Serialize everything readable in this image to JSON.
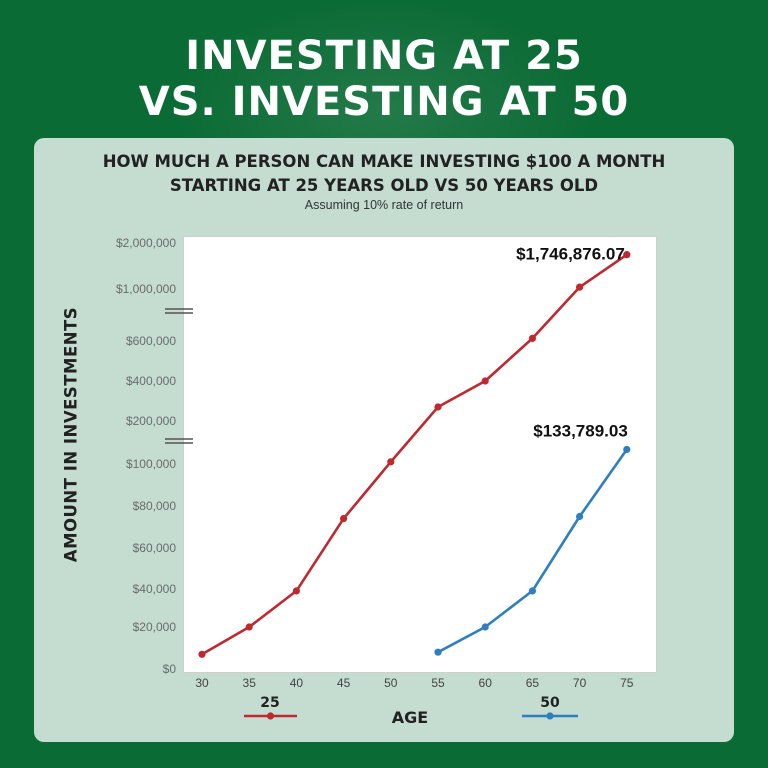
{
  "header": {
    "title_line1": "INVESTING AT 25",
    "title_line2": "VS. INVESTING AT 50"
  },
  "colors": {
    "background": "#0b6b35",
    "panel": "#c4ddd0",
    "series_25": "#c0282f",
    "series_50": "#2f7ec0"
  },
  "chart_data": {
    "type": "line",
    "title": "HOW MUCH A PERSON CAN MAKE INVESTING $100 A MONTH",
    "subtitle": "STARTING AT 25 YEARS OLD VS 50 YEARS OLD",
    "note": "Assuming 10% rate of return",
    "xlabel": "AGE",
    "ylabel": "AMOUNT IN INVESTMENTS",
    "y_axis_broken": true,
    "grid": false,
    "legend_position": "bottom",
    "x": [
      30,
      35,
      40,
      45,
      50,
      55,
      60,
      65,
      70,
      75
    ],
    "x_tick_labels": [
      "30",
      "35",
      "40",
      "45",
      "50",
      "55",
      "60",
      "65",
      "70",
      "75"
    ],
    "y_tick_values": [
      0,
      20000,
      40000,
      60000,
      80000,
      100000,
      200000,
      400000,
      600000,
      1000000,
      2000000
    ],
    "y_tick_labels": [
      "$0",
      "$20,000",
      "$40,000",
      "$60,000",
      "$80,000",
      "$100,000",
      "$200,000",
      "$400,000",
      "$600,000",
      "$1,000,000",
      "$2,000,000"
    ],
    "series": [
      {
        "name": "25",
        "color": "#c0282f",
        "x": [
          30,
          35,
          40,
          45,
          50,
          55,
          60,
          65,
          70,
          75
        ],
        "values": [
          7000,
          20000,
          39000,
          74000,
          105000,
          270000,
          400000,
          620000,
          1040000,
          1746876.07
        ],
        "end_label": "$1,746,876.07"
      },
      {
        "name": "50",
        "color": "#2f7ec0",
        "x": [
          55,
          60,
          65,
          70,
          75
        ],
        "values": [
          8000,
          20000,
          39000,
          75000,
          133789.03
        ],
        "end_label": "$133,789.03"
      }
    ]
  }
}
